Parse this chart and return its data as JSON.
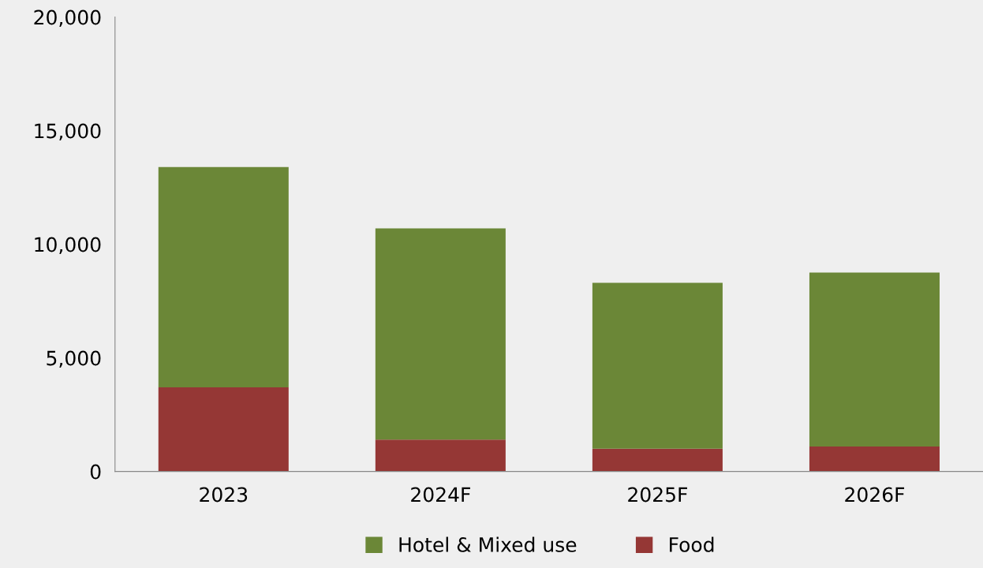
{
  "chart_data": {
    "type": "bar",
    "stacked": true,
    "categories": [
      "2023",
      "2024F",
      "2025F",
      "2026F"
    ],
    "series": [
      {
        "name": "Food",
        "color": "#953735",
        "values": [
          3700,
          1400,
          1000,
          1100
        ]
      },
      {
        "name": "Hotel & Mixed use",
        "color": "#6b8737",
        "values": [
          9700,
          9300,
          7300,
          7650
        ]
      }
    ],
    "ylim": [
      0,
      20000
    ],
    "yticks": [
      0,
      {
        "value": 5000,
        "label": "5,000"
      },
      {
        "value": 10000,
        "label": "10,000"
      },
      {
        "value": 15000,
        "label": "15,000"
      },
      {
        "value": 20000,
        "label": "20,000"
      }
    ],
    "grid": false,
    "legend": "bottom"
  }
}
